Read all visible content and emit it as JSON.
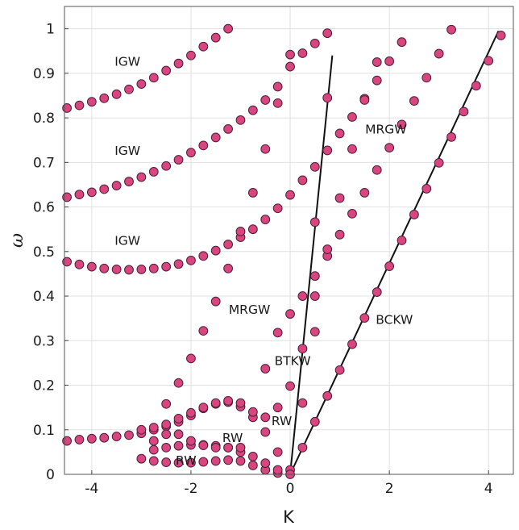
{
  "chart_data": {
    "type": "scatter",
    "title": "",
    "xlabel": "K",
    "ylabel": "ω",
    "xlim": [
      -4.55,
      4.5
    ],
    "ylim": [
      0,
      1.05
    ],
    "xticks": [
      -4,
      -2,
      0,
      2,
      4
    ],
    "yticks": [
      0,
      0.1,
      0.2,
      0.3,
      0.4,
      0.5,
      0.6,
      0.7,
      0.8,
      0.9,
      1
    ],
    "xtick_labels": [
      "-4",
      "-2",
      "0",
      "2",
      "4"
    ],
    "ytick_labels": [
      "0",
      "0.1",
      "0.2",
      "0.3",
      "0.4",
      "0.5",
      "0.6",
      "0.7",
      "0.8",
      "0.9",
      "1"
    ],
    "grid": true,
    "marker_color": "#d8457f",
    "marker_edge": "#4a2038",
    "series": [
      {
        "values": [
          [
            -4.5,
            0.822
          ],
          [
            -4.25,
            0.828
          ],
          [
            -4.0,
            0.836
          ],
          [
            -3.75,
            0.844
          ],
          [
            -3.5,
            0.853
          ],
          [
            -3.25,
            0.864
          ],
          [
            -3.0,
            0.876
          ],
          [
            -2.75,
            0.89
          ],
          [
            -2.5,
            0.906
          ],
          [
            -2.25,
            0.922
          ],
          [
            -2.0,
            0.94
          ],
          [
            -1.75,
            0.96
          ],
          [
            -1.5,
            0.98
          ],
          [
            -1.25,
            1.0
          ],
          [
            -4.5,
            0.622
          ],
          [
            -4.25,
            0.628
          ],
          [
            -4.0,
            0.633
          ],
          [
            -3.75,
            0.64
          ],
          [
            -3.5,
            0.648
          ],
          [
            -3.25,
            0.657
          ],
          [
            -3.0,
            0.667
          ],
          [
            -2.75,
            0.679
          ],
          [
            -2.5,
            0.692
          ],
          [
            -2.25,
            0.706
          ],
          [
            -2.0,
            0.722
          ],
          [
            -1.75,
            0.738
          ],
          [
            -1.5,
            0.756
          ],
          [
            -1.25,
            0.775
          ],
          [
            -1.0,
            0.795
          ],
          [
            -0.75,
            0.817
          ],
          [
            -0.5,
            0.84
          ],
          [
            -0.25,
            0.87
          ],
          [
            0.0,
            0.915
          ],
          [
            0.25,
            0.945
          ],
          [
            0.5,
            0.967
          ],
          [
            0.75,
            0.99
          ],
          [
            -4.5,
            0.477
          ],
          [
            -4.25,
            0.471
          ],
          [
            -4.0,
            0.466
          ],
          [
            -3.75,
            0.462
          ],
          [
            -3.5,
            0.46
          ],
          [
            -3.25,
            0.459
          ],
          [
            -3.0,
            0.46
          ],
          [
            -2.75,
            0.462
          ],
          [
            -2.5,
            0.466
          ],
          [
            -2.25,
            0.472
          ],
          [
            -2.0,
            0.48
          ],
          [
            -1.75,
            0.49
          ],
          [
            -1.5,
            0.502
          ],
          [
            -1.25,
            0.516
          ],
          [
            -1.0,
            0.532
          ],
          [
            -0.75,
            0.55
          ],
          [
            -0.5,
            0.572
          ],
          [
            -0.25,
            0.597
          ],
          [
            0.0,
            0.627
          ],
          [
            0.25,
            0.66
          ],
          [
            0.5,
            0.69
          ],
          [
            0.75,
            0.727
          ],
          [
            1.0,
            0.765
          ],
          [
            1.25,
            0.802
          ],
          [
            1.5,
            0.843
          ],
          [
            1.75,
            0.884
          ],
          [
            2.0,
            0.927
          ],
          [
            2.25,
            0.97
          ],
          [
            -4.5,
            0.075
          ],
          [
            -4.25,
            0.078
          ],
          [
            -4.0,
            0.08
          ],
          [
            -3.75,
            0.082
          ],
          [
            -3.5,
            0.085
          ],
          [
            -3.25,
            0.088
          ],
          [
            -3.0,
            0.092
          ],
          [
            -2.75,
            0.1
          ],
          [
            -2.5,
            0.108
          ],
          [
            -2.25,
            0.118
          ],
          [
            -2.0,
            0.132
          ],
          [
            -1.75,
            0.148
          ],
          [
            -1.5,
            0.158
          ],
          [
            -1.25,
            0.162
          ],
          [
            -1.0,
            0.152
          ],
          [
            -0.75,
            0.128
          ],
          [
            -0.5,
            0.095
          ],
          [
            -0.25,
            0.05
          ],
          [
            0.0,
            0.01
          ],
          [
            -3.0,
            0.035
          ],
          [
            -2.75,
            0.03
          ],
          [
            -2.5,
            0.027
          ],
          [
            -2.25,
            0.026
          ],
          [
            -2.0,
            0.026
          ],
          [
            -1.75,
            0.028
          ],
          [
            -1.5,
            0.03
          ],
          [
            -1.25,
            0.032
          ],
          [
            -1.0,
            0.03
          ],
          [
            -0.75,
            0.02
          ],
          [
            -0.5,
            0.01
          ],
          [
            -0.25,
            0.003
          ],
          [
            -2.75,
            0.055
          ],
          [
            -2.5,
            0.06
          ],
          [
            -2.25,
            0.064
          ],
          [
            -2.0,
            0.066
          ],
          [
            -1.75,
            0.066
          ],
          [
            -1.5,
            0.064
          ],
          [
            -1.25,
            0.06
          ],
          [
            -1.0,
            0.05
          ],
          [
            -0.75,
            0.04
          ],
          [
            -0.5,
            0.025
          ],
          [
            -0.25,
            0.01
          ],
          [
            -3.0,
            0.1
          ],
          [
            -2.75,
            0.105
          ],
          [
            -2.5,
            0.112
          ],
          [
            -2.25,
            0.125
          ],
          [
            -2.0,
            0.138
          ],
          [
            -1.75,
            0.15
          ],
          [
            -1.5,
            0.16
          ],
          [
            -1.25,
            0.165
          ],
          [
            -1.0,
            0.16
          ],
          [
            -0.75,
            0.14
          ],
          [
            -0.5,
            0.128
          ],
          [
            -2.75,
            0.075
          ],
          [
            -2.5,
            0.09
          ],
          [
            -2.25,
            0.09
          ],
          [
            -2.0,
            0.075
          ],
          [
            -1.75,
            0.065
          ],
          [
            -1.5,
            0.06
          ],
          [
            -1.25,
            0.06
          ],
          [
            -1.0,
            0.06
          ],
          [
            -2.5,
            0.158
          ],
          [
            -2.25,
            0.205
          ],
          [
            -2.0,
            0.26
          ],
          [
            -1.75,
            0.322
          ],
          [
            -1.5,
            0.388
          ],
          [
            -1.25,
            0.462
          ],
          [
            -1.0,
            0.545
          ],
          [
            -0.75,
            0.632
          ],
          [
            -0.5,
            0.73
          ],
          [
            -0.25,
            0.833
          ],
          [
            0.0,
            0.942
          ],
          [
            -0.5,
            0.237
          ],
          [
            -0.25,
            0.318
          ],
          [
            0.0,
            0.36
          ],
          [
            0.25,
            0.4
          ],
          [
            0.5,
            0.445
          ],
          [
            0.75,
            0.49
          ],
          [
            1.0,
            0.538
          ],
          [
            1.25,
            0.585
          ],
          [
            1.5,
            0.632
          ],
          [
            1.75,
            0.683
          ],
          [
            2.0,
            0.733
          ],
          [
            2.25,
            0.785
          ],
          [
            2.5,
            0.838
          ],
          [
            2.75,
            0.89
          ],
          [
            3.0,
            0.944
          ],
          [
            3.25,
            0.998
          ],
          [
            -0.25,
            0.15
          ],
          [
            0.0,
            0.198
          ],
          [
            0.25,
            0.282
          ],
          [
            0.5,
            0.4
          ],
          [
            0.75,
            0.505
          ],
          [
            1.0,
            0.62
          ],
          [
            1.25,
            0.73
          ],
          [
            1.5,
            0.84
          ],
          [
            1.75,
            0.925
          ],
          [
            0.25,
            0.06
          ],
          [
            0.5,
            0.118
          ],
          [
            0.75,
            0.176
          ],
          [
            1.0,
            0.234
          ],
          [
            1.25,
            0.292
          ],
          [
            1.5,
            0.351
          ],
          [
            1.75,
            0.409
          ],
          [
            2.0,
            0.467
          ],
          [
            2.25,
            0.525
          ],
          [
            2.5,
            0.583
          ],
          [
            2.75,
            0.641
          ],
          [
            3.0,
            0.699
          ],
          [
            3.25,
            0.757
          ],
          [
            3.5,
            0.814
          ],
          [
            3.75,
            0.872
          ],
          [
            4.0,
            0.928
          ],
          [
            4.25,
            0.985
          ],
          [
            0.0,
            0.0
          ],
          [
            0.25,
            0.16
          ],
          [
            0.5,
            0.32
          ],
          [
            0.5,
            0.566
          ],
          [
            0.75,
            0.845
          ]
        ]
      }
    ],
    "lines": [
      {
        "x": [
          0.0,
          0.85
        ],
        "y": [
          0.0,
          0.94
        ]
      },
      {
        "x": [
          0.0,
          4.2
        ],
        "y": [
          0.0,
          0.995
        ]
      }
    ],
    "annotations": [
      {
        "text": "IGW",
        "x": -3.28,
        "y": 0.917
      },
      {
        "text": "IGW",
        "x": -3.28,
        "y": 0.717
      },
      {
        "text": "IGW",
        "x": -3.28,
        "y": 0.515
      },
      {
        "text": "MRGW",
        "x": 1.93,
        "y": 0.765
      },
      {
        "text": "MRGW",
        "x": -0.82,
        "y": 0.36
      },
      {
        "text": "BCKW",
        "x": 2.1,
        "y": 0.338
      },
      {
        "text": "BTKW",
        "x": 0.05,
        "y": 0.245
      },
      {
        "text": "RW",
        "x": -0.17,
        "y": 0.11
      },
      {
        "text": "RW",
        "x": -1.16,
        "y": 0.072
      },
      {
        "text": "RW",
        "x": -2.1,
        "y": 0.022
      }
    ]
  }
}
